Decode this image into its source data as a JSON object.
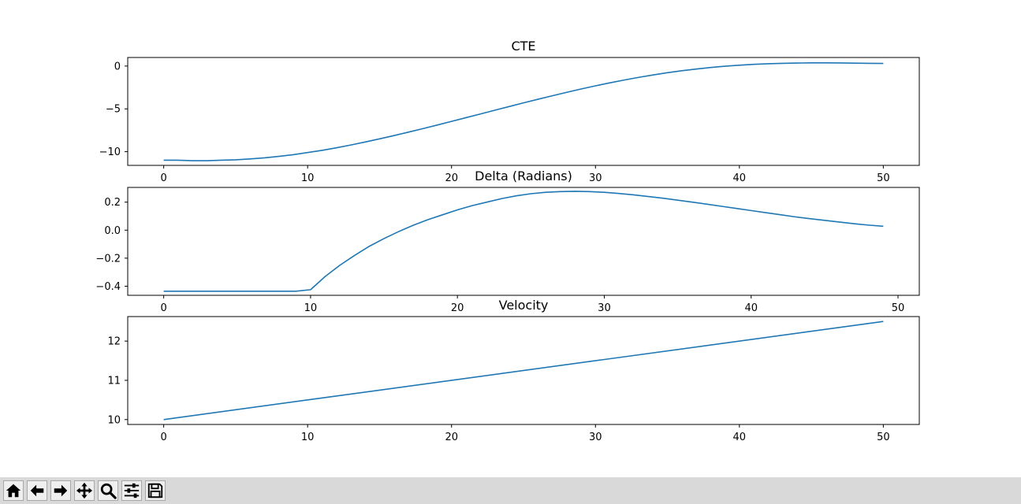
{
  "chart_data": [
    {
      "type": "line",
      "title": "CTE",
      "xlim": [
        -2.5,
        52.5
      ],
      "ylim": [
        -11.6,
        1.0
      ],
      "xticks": [
        0,
        10,
        20,
        30,
        40,
        50
      ],
      "yticks": [
        -10,
        -5,
        0
      ],
      "color": "#1f77b4",
      "series": [
        {
          "x": [
            0,
            1,
            2,
            3,
            4,
            5,
            6,
            7,
            8,
            9,
            10,
            11,
            12,
            13,
            14,
            15,
            16,
            17,
            18,
            19,
            20,
            21,
            22,
            23,
            24,
            25,
            26,
            27,
            28,
            29,
            30,
            31,
            32,
            33,
            34,
            35,
            36,
            37,
            38,
            39,
            40,
            41,
            42,
            43,
            44,
            45,
            46,
            47,
            48,
            49,
            50
          ],
          "y": [
            -11.0,
            -11.0,
            -11.05,
            -11.05,
            -11.0,
            -10.95,
            -10.85,
            -10.72,
            -10.55,
            -10.35,
            -10.1,
            -9.85,
            -9.55,
            -9.22,
            -8.87,
            -8.5,
            -8.12,
            -7.72,
            -7.31,
            -6.89,
            -6.46,
            -6.03,
            -5.6,
            -5.16,
            -4.73,
            -4.3,
            -3.88,
            -3.47,
            -3.07,
            -2.68,
            -2.31,
            -1.96,
            -1.63,
            -1.32,
            -1.04,
            -0.78,
            -0.55,
            -0.35,
            -0.17,
            -0.02,
            0.1,
            0.2,
            0.27,
            0.32,
            0.35,
            0.37,
            0.37,
            0.36,
            0.34,
            0.32,
            0.3
          ]
        }
      ]
    },
    {
      "type": "line",
      "title": "Delta (Radians)",
      "xlim": [
        -2.45,
        51.45
      ],
      "ylim": [
        -0.465,
        0.305
      ],
      "xticks": [
        0,
        10,
        20,
        30,
        40,
        50
      ],
      "yticks": [
        -0.4,
        -0.2,
        0.0,
        0.2
      ],
      "ytick_labels": [
        "−0.4",
        "−0.2",
        "0.0",
        "0.2"
      ],
      "color": "#1f77b4",
      "series": [
        {
          "x": [
            0,
            1,
            2,
            3,
            4,
            5,
            6,
            7,
            8,
            9,
            10,
            11,
            12,
            13,
            14,
            15,
            16,
            17,
            18,
            19,
            20,
            21,
            22,
            23,
            24,
            25,
            26,
            27,
            28,
            29,
            30,
            31,
            32,
            33,
            34,
            35,
            36,
            37,
            38,
            39,
            40,
            41,
            42,
            43,
            44,
            45,
            46,
            47,
            48,
            49
          ],
          "y": [
            -0.436,
            -0.436,
            -0.436,
            -0.436,
            -0.436,
            -0.436,
            -0.436,
            -0.436,
            -0.436,
            -0.436,
            -0.425,
            -0.33,
            -0.25,
            -0.18,
            -0.115,
            -0.06,
            -0.01,
            0.035,
            0.075,
            0.11,
            0.145,
            0.175,
            0.2,
            0.225,
            0.245,
            0.26,
            0.27,
            0.275,
            0.277,
            0.275,
            0.27,
            0.262,
            0.252,
            0.24,
            0.228,
            0.214,
            0.2,
            0.185,
            0.17,
            0.155,
            0.14,
            0.125,
            0.11,
            0.095,
            0.082,
            0.07,
            0.058,
            0.046,
            0.036,
            0.028
          ]
        }
      ]
    },
    {
      "type": "line",
      "title": "Velocity",
      "xlim": [
        -2.5,
        52.5
      ],
      "ylim": [
        9.875,
        12.625
      ],
      "xticks": [
        0,
        10,
        20,
        30,
        40,
        50
      ],
      "yticks": [
        10,
        11,
        12
      ],
      "color": "#1f77b4",
      "series": [
        {
          "x": [
            0,
            50
          ],
          "y": [
            10.0,
            12.5
          ]
        }
      ]
    }
  ],
  "toolbar": {
    "buttons": [
      {
        "name": "home-button",
        "icon": "home-icon"
      },
      {
        "name": "back-button",
        "icon": "arrow-left-icon"
      },
      {
        "name": "forward-button",
        "icon": "arrow-right-icon"
      },
      {
        "name": "pan-button",
        "icon": "move-icon"
      },
      {
        "name": "zoom-button",
        "icon": "magnifier-icon"
      },
      {
        "name": "configure-subplots-button",
        "icon": "sliders-icon"
      },
      {
        "name": "save-button",
        "icon": "floppy-disk-icon"
      }
    ]
  }
}
